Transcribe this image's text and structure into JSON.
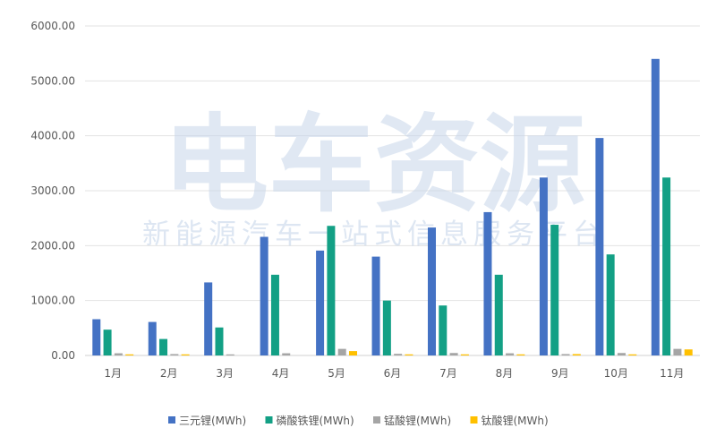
{
  "chart_data": {
    "type": "bar",
    "categories": [
      "1月",
      "2月",
      "3月",
      "4月",
      "5月",
      "6月",
      "7月",
      "8月",
      "9月",
      "10月",
      "11月"
    ],
    "series": [
      {
        "name": "三元锂(MWh)",
        "color": "#4472c4",
        "values": [
          660,
          610,
          1330,
          2160,
          1910,
          1800,
          2330,
          2610,
          3240,
          3960,
          5400
        ]
      },
      {
        "name": "磷酸铁锂(MWh)",
        "color": "#13a085",
        "values": [
          470,
          300,
          510,
          1470,
          2360,
          1000,
          910,
          1470,
          2380,
          1840,
          3240
        ]
      },
      {
        "name": "锰酸锂(MWh)",
        "color": "#a5a5a5",
        "values": [
          40,
          25,
          20,
          40,
          120,
          30,
          45,
          40,
          25,
          45,
          120
        ]
      },
      {
        "name": "钛酸锂(MWh)",
        "color": "#ffc000",
        "values": [
          20,
          20,
          0,
          0,
          80,
          20,
          20,
          20,
          25,
          20,
          110
        ]
      }
    ],
    "yticks": [
      "0.00",
      "1000.00",
      "2000.00",
      "3000.00",
      "4000.00",
      "5000.00",
      "6000.00"
    ],
    "ylim": [
      0,
      6000
    ],
    "grid": true,
    "legend_position": "bottom",
    "watermark": {
      "main": "电车资源",
      "sub": "新能源汽车一站式信息服务平台"
    }
  }
}
